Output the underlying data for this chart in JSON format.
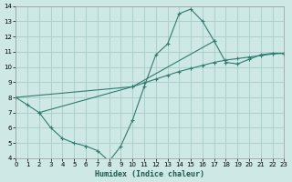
{
  "xlabel": "Humidex (Indice chaleur)",
  "xlim": [
    0,
    23
  ],
  "ylim": [
    4,
    14
  ],
  "xticks": [
    0,
    1,
    2,
    3,
    4,
    5,
    6,
    7,
    8,
    9,
    10,
    11,
    12,
    13,
    14,
    15,
    16,
    17,
    18,
    19,
    20,
    21,
    22,
    23
  ],
  "yticks": [
    4,
    5,
    6,
    7,
    8,
    9,
    10,
    11,
    12,
    13,
    14
  ],
  "bg_color": "#cde8e5",
  "grid_color": "#aed0cc",
  "line_color": "#2e7d70",
  "s1_x": [
    0,
    1,
    2,
    3,
    4,
    5,
    6,
    7,
    8,
    9,
    10,
    11,
    12,
    13,
    14,
    15,
    16,
    17
  ],
  "s1_y": [
    8.0,
    7.5,
    7.0,
    6.0,
    5.3,
    5.0,
    4.8,
    4.5,
    3.8,
    4.8,
    6.5,
    8.7,
    10.8,
    11.5,
    13.5,
    13.8,
    13.0,
    11.7
  ],
  "s2_x": [
    0,
    10,
    11,
    12,
    13,
    14,
    15,
    16,
    17,
    18,
    19,
    20,
    21,
    22,
    23
  ],
  "s2_y": [
    8.0,
    8.7,
    8.95,
    9.2,
    9.45,
    9.7,
    9.9,
    10.1,
    10.3,
    10.45,
    10.55,
    10.65,
    10.75,
    10.85,
    10.9
  ],
  "s3_x": [
    2,
    10,
    17,
    18,
    19,
    20,
    21,
    22,
    23
  ],
  "s3_y": [
    7.0,
    8.7,
    11.7,
    10.3,
    10.2,
    10.5,
    10.8,
    10.9,
    10.9
  ]
}
